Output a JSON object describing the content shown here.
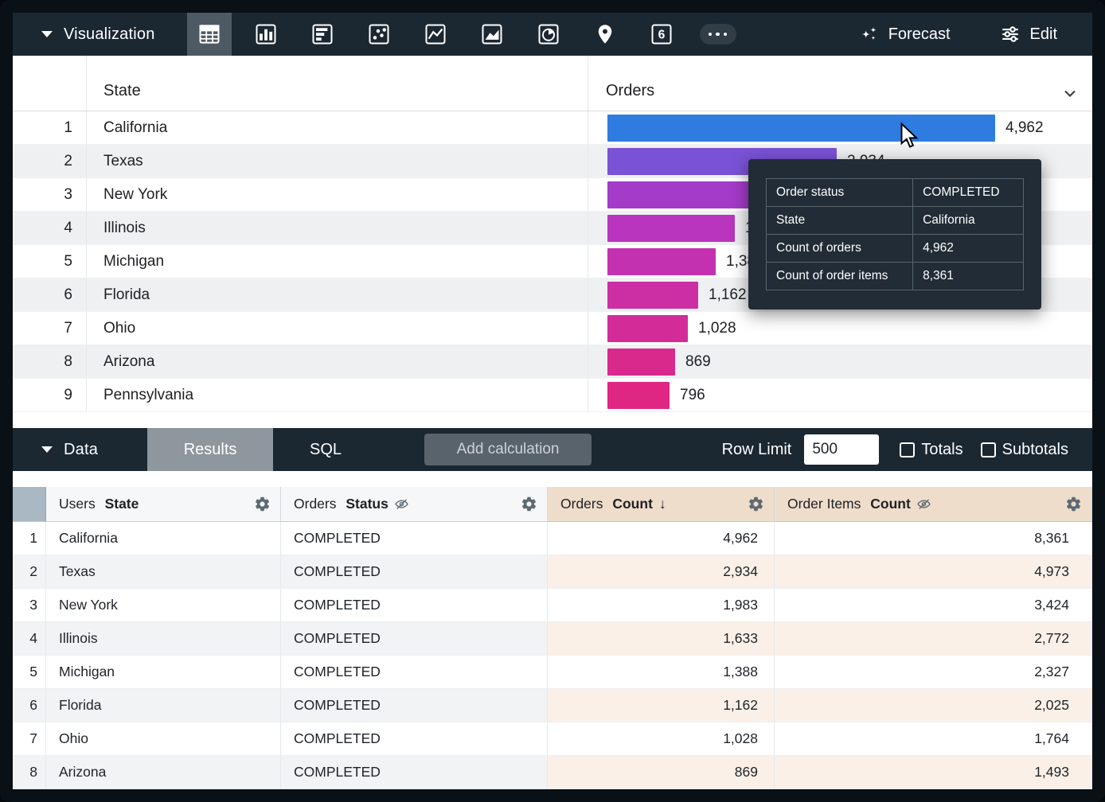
{
  "viz_toolbar": {
    "visualization_label": "Visualization",
    "forecast_label": "Forecast",
    "edit_label": "Edit",
    "viz_type_icons": [
      "table-icon",
      "column-chart-icon",
      "bar-chart-icon",
      "scatter-icon",
      "line-chart-icon",
      "area-chart-icon",
      "pie-chart-icon",
      "map-pin-icon",
      "single-value-icon",
      "more-icon"
    ],
    "selected_viz_type": "table"
  },
  "viz": {
    "state_column": "State",
    "orders_column": "Orders"
  },
  "chart_data": {
    "type": "bar",
    "orientation": "horizontal",
    "title": "",
    "series_name": "Orders Count",
    "categories": [
      "California",
      "Texas",
      "New York",
      "Illinois",
      "Michigan",
      "Florida",
      "Ohio",
      "Arizona",
      "Pennsylvania"
    ],
    "values": [
      4962,
      2934,
      1983,
      1633,
      1388,
      1162,
      1028,
      869,
      796
    ],
    "value_labels": [
      "4,962",
      "2,934",
      "1,983",
      "1,633",
      "1,388",
      "1,162",
      "1,028",
      "869",
      "796"
    ],
    "bar_colors": [
      "#2f7ce0",
      "#7a52d6",
      "#a43bc9",
      "#b935bd",
      "#c431b0",
      "#cc2fa4",
      "#d32c99",
      "#d9298d",
      "#df2683"
    ],
    "xlim": [
      0,
      4962
    ],
    "grid": false,
    "legend": "none"
  },
  "tooltip": {
    "rows": [
      {
        "label": "Order status",
        "value": "COMPLETED"
      },
      {
        "label": "State",
        "value": "California"
      },
      {
        "label": "Count of orders",
        "value": "4,962"
      },
      {
        "label": "Count of order items",
        "value": "8,361"
      }
    ]
  },
  "data_bar": {
    "data_label": "Data",
    "results_tab": "Results",
    "sql_tab": "SQL",
    "add_calculation": "Add calculation",
    "row_limit_label": "Row Limit",
    "row_limit_value": "500",
    "totals_label": "Totals",
    "subtotals_label": "Subtotals"
  },
  "data_table": {
    "columns": [
      {
        "view": "Users",
        "field": "State",
        "type": "dimension",
        "hidden": false,
        "sort": ""
      },
      {
        "view": "Orders",
        "field": "Status",
        "type": "dimension",
        "hidden": true,
        "sort": ""
      },
      {
        "view": "Orders",
        "field": "Count",
        "type": "measure",
        "hidden": false,
        "sort": "desc"
      },
      {
        "view": "Order Items",
        "field": "Count",
        "type": "measure",
        "hidden": true,
        "sort": ""
      }
    ],
    "rows": [
      {
        "index": 1,
        "cells": [
          "California",
          "COMPLETED",
          "4,962",
          "8,361"
        ]
      },
      {
        "index": 2,
        "cells": [
          "Texas",
          "COMPLETED",
          "2,934",
          "4,973"
        ]
      },
      {
        "index": 3,
        "cells": [
          "New York",
          "COMPLETED",
          "1,983",
          "3,424"
        ]
      },
      {
        "index": 4,
        "cells": [
          "Illinois",
          "COMPLETED",
          "1,633",
          "2,772"
        ]
      },
      {
        "index": 5,
        "cells": [
          "Michigan",
          "COMPLETED",
          "1,388",
          "2,327"
        ]
      },
      {
        "index": 6,
        "cells": [
          "Florida",
          "COMPLETED",
          "1,162",
          "2,025"
        ]
      },
      {
        "index": 7,
        "cells": [
          "Ohio",
          "COMPLETED",
          "1,028",
          "1,764"
        ]
      },
      {
        "index": 8,
        "cells": [
          "Arizona",
          "COMPLETED",
          "869",
          "1,493"
        ]
      }
    ]
  }
}
